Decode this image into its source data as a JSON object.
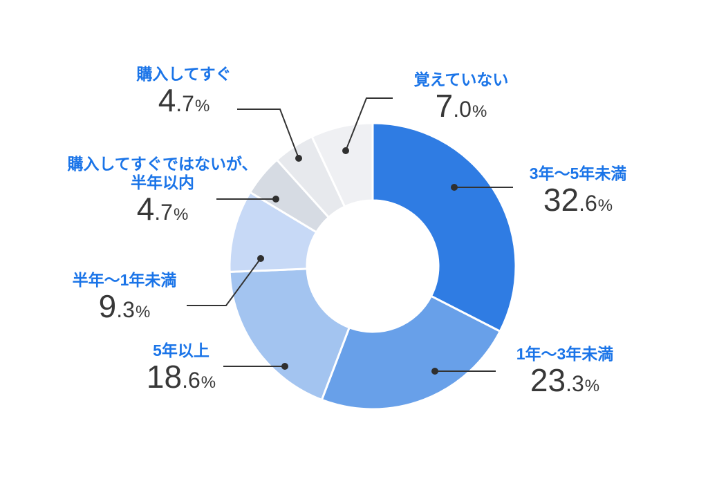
{
  "chart_data": {
    "type": "pie",
    "variant": "donut",
    "title": "",
    "unit": "%",
    "direction": "clockwise",
    "start_angle_deg": 0,
    "legend": "none",
    "donut_hole_ratio": 0.46,
    "categories": [
      "3年〜5年未満",
      "1年〜3年未満",
      "5年以上",
      "半年〜1年未満",
      "購入してすぐではないが、半年以内",
      "購入してすぐ",
      "覚えていない"
    ],
    "values": [
      32.6,
      23.3,
      18.6,
      9.3,
      4.7,
      4.7,
      7.0
    ],
    "slices": [
      {
        "label": "3年〜5年未満",
        "value": 32.6,
        "display": "32.6",
        "color": "#2F7CE3"
      },
      {
        "label": "1年〜3年未満",
        "value": 23.3,
        "display": "23.3",
        "color": "#68A0E9"
      },
      {
        "label": "5年以上",
        "value": 18.6,
        "display": "18.6",
        "color": "#A3C4F0"
      },
      {
        "label": "半年〜1年未満",
        "value": 9.3,
        "display": "9.3",
        "color": "#C7D9F6"
      },
      {
        "label": "購入してすぐではないが、半年以内",
        "value": 4.7,
        "display": "4.7",
        "color": "#D6DBE3"
      },
      {
        "label": "購入してすぐ",
        "value": 4.7,
        "display": "4.7",
        "color": "#E7E9ED"
      },
      {
        "label": "覚えていない",
        "value": 7.0,
        "display": "7.0",
        "color": "#EFF0F3"
      }
    ],
    "colors": {
      "label_text": "#1A74E8",
      "value_text": "#383838",
      "leader_line": "#333333",
      "leader_dot": "#2F2F2F",
      "slice_border": "#FFFFFF",
      "background": "#FFFFFF"
    }
  }
}
